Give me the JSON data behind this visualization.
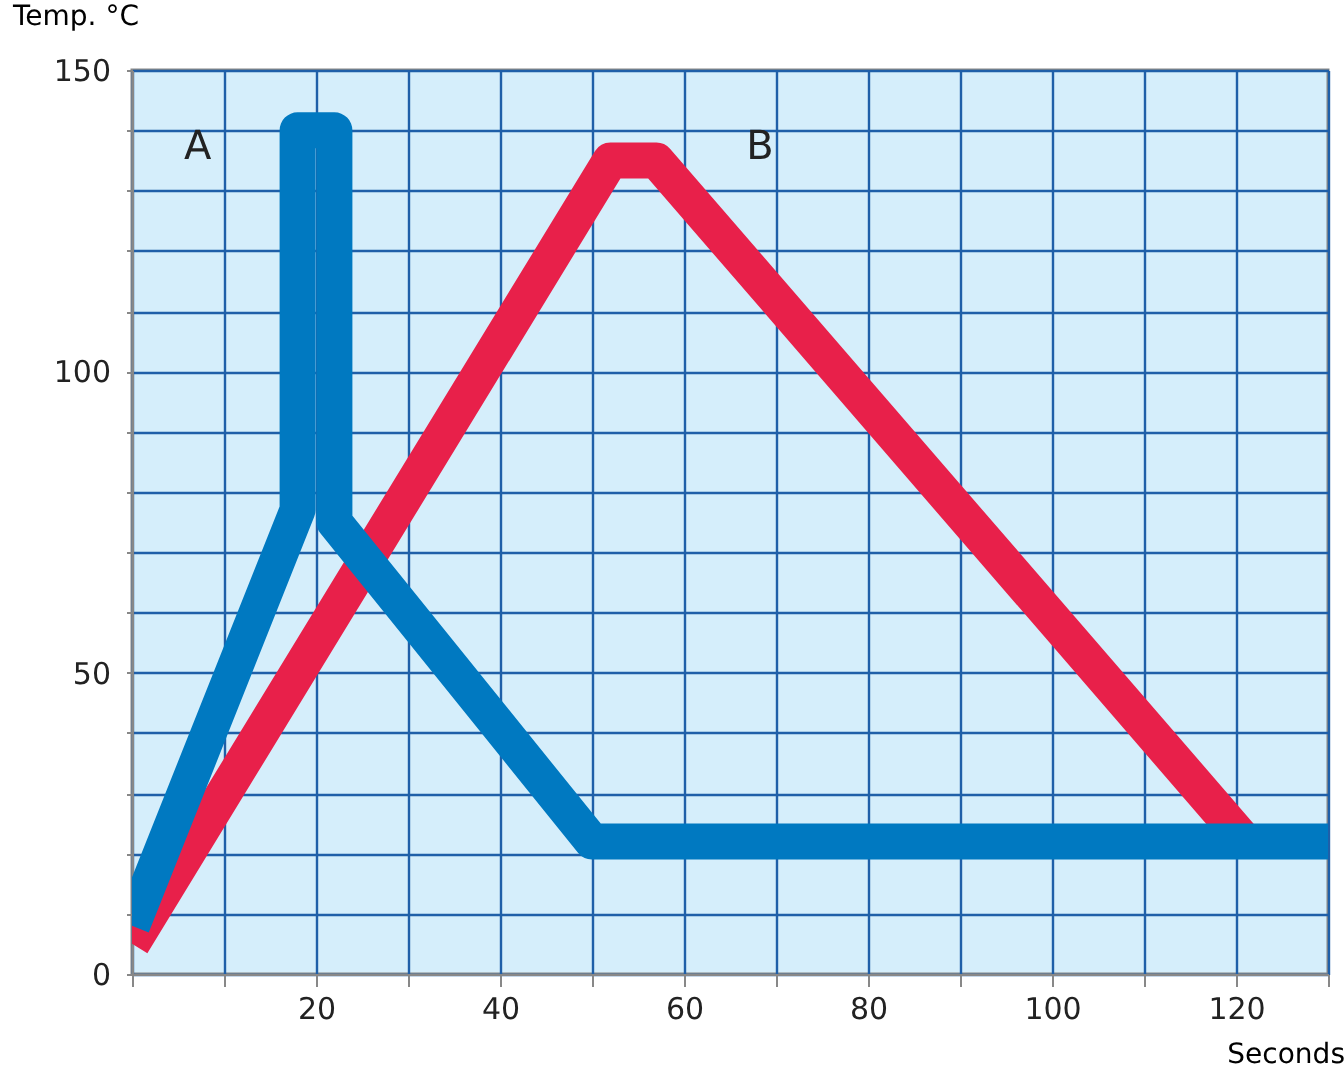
{
  "chart_data": {
    "type": "line",
    "xlabel": "Seconds",
    "ylabel": "Temp. °C",
    "series": [
      {
        "x": [
          0,
          52,
          57,
          121
        ],
        "values": [
          5,
          135,
          135,
          22
        ],
        "color": "#e8204a"
      },
      {
        "x": [
          0,
          18,
          18,
          22,
          22,
          50,
          130
        ],
        "values": [
          8,
          77,
          140,
          140,
          75,
          22,
          22
        ],
        "color": "#0079c1"
      }
    ],
    "xlim": [
      0,
      130
    ],
    "ylim": [
      0,
      150
    ],
    "xticks": [
      {
        "value": 0,
        "label": null
      },
      {
        "value": 10,
        "label": null
      },
      20,
      {
        "value": 30,
        "label": null
      },
      40,
      {
        "value": 50,
        "label": null
      },
      60,
      {
        "value": 70,
        "label": null
      },
      80,
      {
        "value": 90,
        "label": null
      },
      100,
      {
        "value": 110,
        "label": null
      },
      120,
      {
        "value": 130,
        "label": null
      }
    ],
    "yticks": [
      0,
      {
        "value": 10,
        "label": null
      },
      {
        "value": 20,
        "label": null
      },
      {
        "value": 30,
        "label": null
      },
      {
        "value": 40,
        "label": null
      },
      50,
      {
        "value": 60,
        "label": null
      },
      {
        "value": 70,
        "label": null
      },
      {
        "value": 80,
        "label": null
      },
      {
        "value": 90,
        "label": null
      },
      100,
      {
        "value": 110,
        "label": null
      },
      {
        "value": 120,
        "label": null
      },
      {
        "value": 130,
        "label": null
      },
      {
        "value": 140,
        "label": null
      },
      150
    ],
    "grid": true,
    "line_style": "solid",
    "marker": "none",
    "annotations": [
      "A",
      "B"
    ]
  }
}
